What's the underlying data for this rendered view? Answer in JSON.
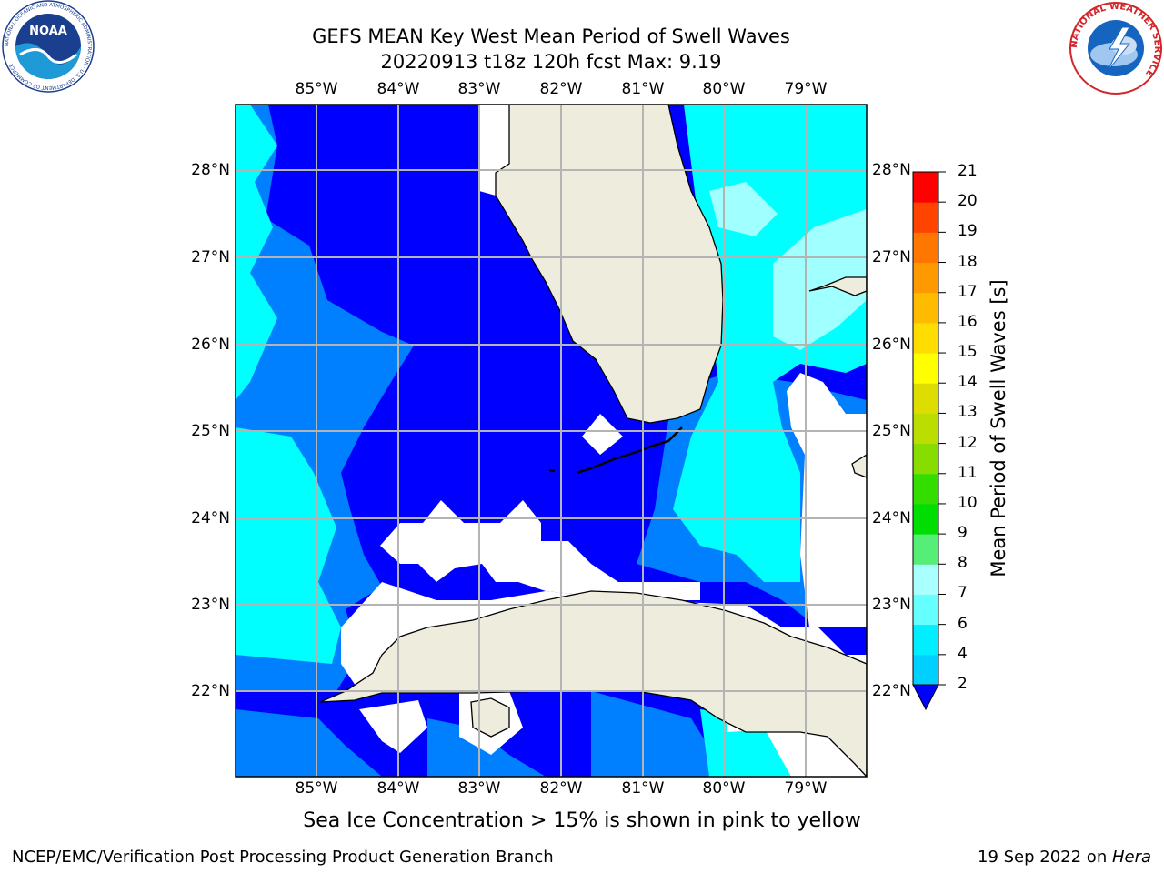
{
  "title": {
    "line1": "GEFS MEAN Key West Mean Period of Swell Waves",
    "line2": "20220913 t18z 120h fcst   Max: 9.19"
  },
  "logos": {
    "noaa_text": "NOAA",
    "noaa_ring_text": "NATIONAL OCEANIC AND ATMOSPHERIC ADMINISTRATION · U.S. DEPARTMENT OF COMMERCE",
    "nws_ring_text": "NATIONAL WEATHER SERVICE"
  },
  "map": {
    "lon_labels": [
      "85°W",
      "84°W",
      "83°W",
      "82°W",
      "81°W",
      "80°W",
      "79°W"
    ],
    "lat_labels": [
      "28°N",
      "27°N",
      "26°N",
      "25°N",
      "24°N",
      "23°N",
      "22°N"
    ],
    "lon_range": [
      -86.0,
      -78.25
    ],
    "lat_range": [
      21.05,
      28.75
    ],
    "colors": {
      "land": "#eeecdc",
      "ocean_long": "#0000ff",
      "ocean_mid": "#0080ff",
      "ocean_short": "#00ffff",
      "ocean_light": "#a0ffff",
      "grid": "#b4b4b4"
    }
  },
  "colorbar": {
    "label": "Mean Period of Swell Waves [s]",
    "ticks": [
      "2",
      "4",
      "6",
      "7",
      "8",
      "9",
      "10",
      "11",
      "12",
      "13",
      "14",
      "15",
      "16",
      "17",
      "18",
      "19",
      "20",
      "21"
    ],
    "colors": [
      "#0055ff",
      "#00d0ff",
      "#00eeff",
      "#66ffff",
      "#aaffff",
      "#55ee77",
      "#00dd00",
      "#33dd00",
      "#88dd00",
      "#bbdd00",
      "#dddd00",
      "#ffff00",
      "#ffdd00",
      "#ffbb00",
      "#ff9900",
      "#ff7700",
      "#ff4400",
      "#ff0000"
    ],
    "extend_color": "#0000ff"
  },
  "caption": "Sea Ice Concentration > 15% is shown in pink to yellow",
  "footer": {
    "left": "NCEP/EMC/Verification Post Processing Product Generation Branch",
    "date": "19 Sep 2022 on ",
    "machine": "Hera"
  }
}
